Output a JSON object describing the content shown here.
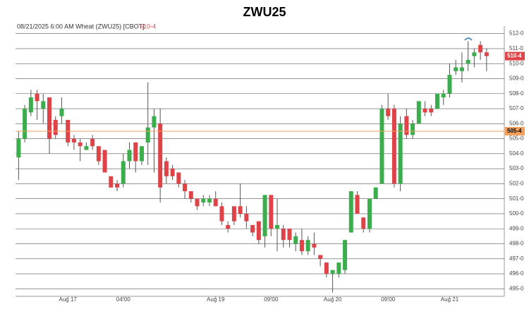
{
  "chart_data": {
    "type": "candlestick",
    "title": "ZWU25",
    "subtitle": "08/21/2025  6:00 AM Wheat (ZWU25) [CBOT]",
    "last_price": {
      "value": 510.5,
      "label": "510-4"
    },
    "reference_line": {
      "value": 505.5,
      "label": "505-4"
    },
    "up_color": "#3aae4a",
    "down_color": "#dd4347",
    "reference_color": "#f5a05a",
    "categories": [
      null,
      null,
      null,
      null,
      null,
      null,
      null,
      null,
      "Aug 17",
      null,
      null,
      null,
      null,
      null,
      null,
      null,
      null,
      "04:00",
      null,
      null,
      null,
      null,
      null,
      null,
      null,
      null,
      null,
      null,
      null,
      null,
      null,
      null,
      "Aug 19",
      null,
      null,
      null,
      null,
      null,
      null,
      null,
      null,
      "09:00",
      null,
      null,
      null,
      null,
      null,
      null,
      null,
      null,
      null,
      "Aug 20",
      null,
      null,
      null,
      null,
      null,
      null,
      null,
      null,
      "09:00",
      null,
      null,
      null,
      null,
      null,
      null,
      null,
      null,
      null,
      "Aug 21",
      null,
      null,
      null,
      null,
      null,
      null
    ],
    "open": [
      503.75,
      505,
      506.75,
      508,
      507,
      507.75,
      506.25,
      506.5,
      506.25,
      505,
      504.75,
      504.25,
      505,
      504.5,
      504.25,
      502.5,
      502,
      502,
      503.5,
      504.75,
      503.5,
      504.75,
      505.75,
      506,
      503.5,
      503,
      502.75,
      502,
      501.5,
      501,
      500.75,
      500.75,
      501,
      500.5,
      499.25,
      500.5,
      500.5,
      500,
      499.25,
      499.5,
      498.5,
      501.25,
      499,
      499,
      499,
      498,
      498.25,
      497.5,
      498,
      497.25,
      496.75,
      496,
      496,
      496.25,
      498.75,
      501.25,
      499.75,
      499,
      501,
      502,
      507,
      507,
      502,
      506.5,
      505.25,
      506,
      507,
      507,
      507,
      507.75,
      508,
      509.5,
      509.5,
      510,
      510.5,
      511.25,
      510.75
    ],
    "high": [
      505.5,
      507.25,
      508.25,
      508.25,
      508,
      507.75,
      506.5,
      507.75,
      506.25,
      505.25,
      505,
      504.75,
      505.25,
      504.5,
      504.25,
      502.5,
      502.25,
      504,
      504.75,
      504.75,
      504.5,
      508.75,
      507,
      507,
      503.75,
      503.25,
      502.75,
      502.25,
      501.5,
      501,
      501.25,
      501.25,
      501.5,
      500.75,
      499.5,
      500.5,
      502,
      500.5,
      499.25,
      499.5,
      501.25,
      501.25,
      501,
      499.25,
      499,
      498.75,
      499,
      498.5,
      498.75,
      497.25,
      496.75,
      496.25,
      496.75,
      498.25,
      501.5,
      501.5,
      499.75,
      501,
      501.75,
      507.25,
      508,
      507.25,
      506.5,
      507,
      506.25,
      507.5,
      507.5,
      507.25,
      508,
      508.25,
      510,
      510.25,
      510.75,
      511.5,
      511,
      511.5,
      511
    ],
    "low": [
      502.25,
      504.75,
      506.5,
      506.25,
      506,
      504,
      505,
      506,
      504.5,
      504.25,
      503.5,
      504.25,
      504.25,
      503.25,
      502.75,
      501.75,
      501.5,
      501.75,
      503,
      502.75,
      503.25,
      503.25,
      502.75,
      500.75,
      502,
      502.25,
      501.75,
      501,
      500.75,
      500.25,
      500.5,
      500.5,
      500.5,
      499.25,
      498.75,
      499.25,
      499.75,
      499,
      498.5,
      498,
      497.75,
      498.5,
      497.5,
      497.75,
      497.75,
      497.5,
      497.25,
      497.25,
      497.25,
      496.5,
      495.75,
      494.75,
      495.75,
      496,
      498.75,
      500,
      498.75,
      498.75,
      501,
      502,
      506.25,
      501.75,
      501.5,
      505,
      505,
      506,
      506.5,
      506.5,
      507,
      507.25,
      507.75,
      509.25,
      508.75,
      509.5,
      509.75,
      510.25,
      509.5
    ],
    "close": [
      505,
      507,
      507.75,
      507.5,
      507.5,
      505,
      505.25,
      507,
      504.75,
      504.75,
      504.5,
      504.5,
      504.5,
      503.5,
      502.75,
      501.75,
      501.75,
      503.5,
      504.25,
      503.5,
      504.5,
      505.75,
      506.5,
      501.75,
      502.5,
      502.5,
      502,
      501.5,
      501,
      500.5,
      501,
      501,
      500.5,
      499.5,
      499,
      499.5,
      500,
      499.5,
      498.75,
      498.25,
      501.25,
      499,
      499.25,
      498.25,
      498.25,
      498.5,
      497.5,
      498.25,
      497.75,
      497,
      496,
      496.25,
      496.75,
      498.25,
      501.5,
      500,
      499,
      501,
      501.75,
      507,
      506.5,
      502,
      506,
      505.25,
      506,
      507.5,
      506.75,
      506.75,
      508,
      508,
      509.25,
      509.75,
      509.75,
      510.25,
      510.75,
      510.75,
      510.5
    ],
    "ylim": [
      494.5,
      512.5
    ],
    "yticks": [
      {
        "value": 495,
        "label": "495-0"
      },
      {
        "value": 496,
        "label": "496-0"
      },
      {
        "value": 497,
        "label": "497-0"
      },
      {
        "value": 498,
        "label": "498-0"
      },
      {
        "value": 499,
        "label": "499-0"
      },
      {
        "value": 500,
        "label": "500-0"
      },
      {
        "value": 501,
        "label": "501-0"
      },
      {
        "value": 502,
        "label": "502-0"
      },
      {
        "value": 503,
        "label": "503-0"
      },
      {
        "value": 504,
        "label": "504-0"
      },
      {
        "value": 505,
        "label": "505-0"
      },
      {
        "value": 506,
        "label": "506-0"
      },
      {
        "value": 507,
        "label": "507-0"
      },
      {
        "value": 508,
        "label": "508-0"
      },
      {
        "value": 509,
        "label": "509-0"
      },
      {
        "value": 510,
        "label": "510-0"
      },
      {
        "value": 511,
        "label": "511-0"
      },
      {
        "value": 512,
        "label": "512-0"
      }
    ],
    "grid": true
  }
}
